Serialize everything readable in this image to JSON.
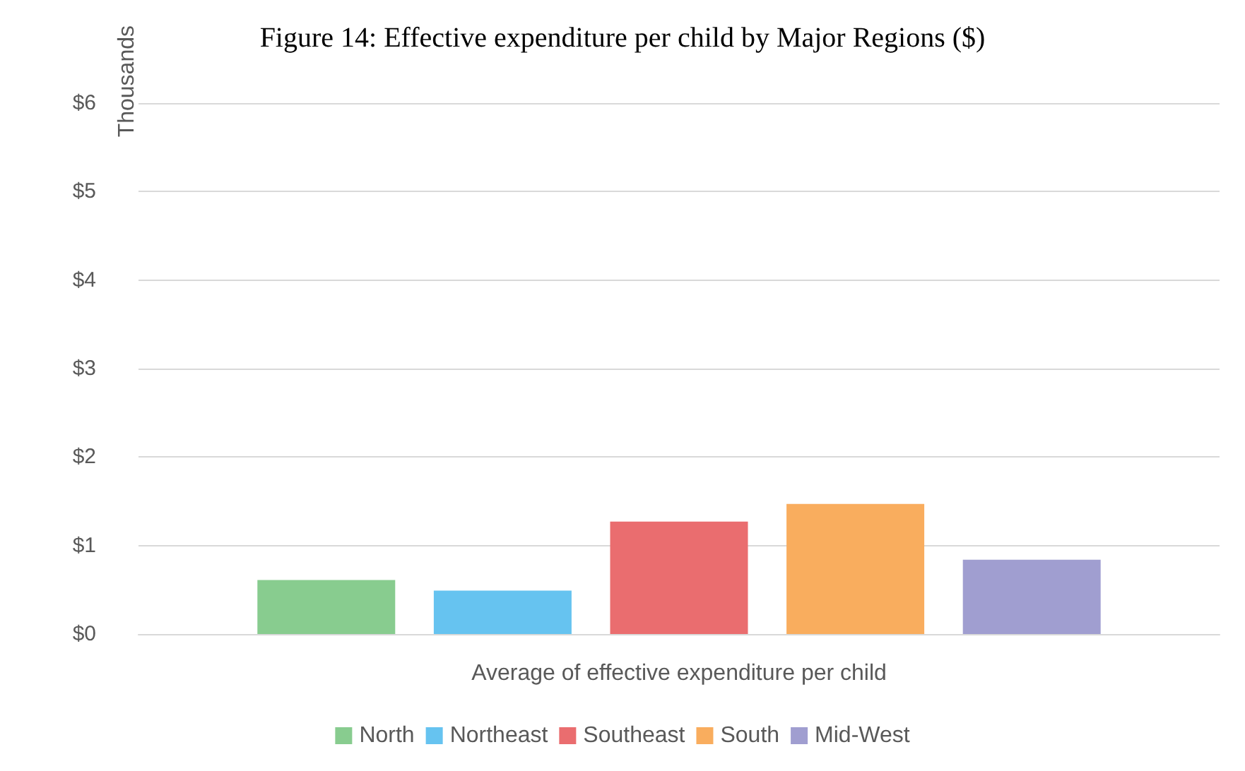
{
  "chart_data": {
    "type": "bar",
    "title": "Figure 14: Effective expenditure per child by Major Regions ($)",
    "ylabel": "Thousands",
    "categories": [
      "Average of effective expenditure per child"
    ],
    "series": [
      {
        "name": "North",
        "color": "#88cc8f",
        "values": [
          0.61
        ]
      },
      {
        "name": "Northeast",
        "color": "#66c3f0",
        "values": [
          0.49
        ]
      },
      {
        "name": "Southeast",
        "color": "#ea6d6f",
        "values": [
          1.27
        ]
      },
      {
        "name": "South",
        "color": "#f9ad5e",
        "values": [
          1.47
        ]
      },
      {
        "name": "Mid-West",
        "color": "#a09ed0",
        "values": [
          0.84
        ]
      }
    ],
    "ylim": [
      0,
      6
    ],
    "yticks": [
      {
        "value": 0,
        "label": "$0"
      },
      {
        "value": 1,
        "label": "$1"
      },
      {
        "value": 2,
        "label": "$2"
      },
      {
        "value": 3,
        "label": "$3"
      },
      {
        "value": 4,
        "label": "$4"
      },
      {
        "value": 5,
        "label": "$5"
      },
      {
        "value": 6,
        "label": "$6"
      }
    ],
    "grid": "y",
    "legend": "bottom"
  }
}
